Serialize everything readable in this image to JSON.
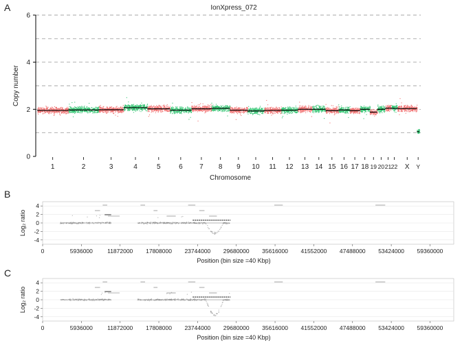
{
  "panels": {
    "a": "A",
    "b": "B",
    "c": "C"
  },
  "colors": {
    "red": "#f07070",
    "green": "#33c472",
    "segment": "#000000",
    "grid": "#888888",
    "dots": "#888888"
  },
  "chart_data": [
    {
      "type": "scatter",
      "panel": "A",
      "title": "IonXpress_072",
      "xlabel": "Chromosome",
      "ylabel": "Copy number",
      "ylim": [
        0,
        6
      ],
      "yticks": [
        0,
        2,
        4,
        6
      ],
      "dashed_grid": [
        1,
        2,
        3,
        4,
        5,
        6
      ],
      "chromosomes": [
        {
          "label": "1",
          "size": 249,
          "value": 1.95
        },
        {
          "label": "2",
          "size": 243,
          "value": 1.97
        },
        {
          "label": "3",
          "size": 198,
          "value": 1.98
        },
        {
          "label": "4",
          "size": 190,
          "value": 2.07
        },
        {
          "label": "5",
          "size": 181,
          "value": 2.02
        },
        {
          "label": "6",
          "size": 171,
          "value": 1.96
        },
        {
          "label": "7",
          "size": 159,
          "value": 2.02
        },
        {
          "label": "8",
          "size": 146,
          "value": 2.04
        },
        {
          "label": "9",
          "size": 141,
          "value": 1.96
        },
        {
          "label": "10",
          "size": 135,
          "value": 1.93
        },
        {
          "label": "11",
          "size": 135,
          "value": 1.95
        },
        {
          "label": "12",
          "size": 133,
          "value": 1.96
        },
        {
          "label": "13",
          "size": 115,
          "value": 2.0
        },
        {
          "label": "14",
          "size": 107,
          "value": 2.0
        },
        {
          "label": "15",
          "size": 102,
          "value": 1.94
        },
        {
          "label": "16",
          "size": 90,
          "value": 1.97
        },
        {
          "label": "17",
          "size": 83,
          "value": 1.94
        },
        {
          "label": "18",
          "size": 78,
          "value": 2.0
        },
        {
          "label": "19",
          "size": 59,
          "value": 1.88
        },
        {
          "label": "20",
          "size": 63,
          "value": 2.0
        },
        {
          "label": "21",
          "size": 48,
          "value": 2.05
        },
        {
          "label": "22",
          "size": 51,
          "value": 2.04
        },
        {
          "label": "X",
          "size": 155,
          "value": 2.03
        },
        {
          "label": "Y",
          "size": 20,
          "value": 1.05
        }
      ]
    },
    {
      "type": "scatter",
      "panel": "B",
      "xlabel": "Position (bin size =40 Kbp)",
      "ylabel": "Log₂ ratio",
      "xlim": [
        0,
        63000000
      ],
      "xticks": [
        0,
        5936000,
        11872000,
        17808000,
        23744000,
        29680000,
        35616000,
        41552000,
        47488000,
        53424000,
        59360000
      ],
      "ylim": [
        -5,
        5
      ],
      "yticks": [
        -4,
        -2,
        0,
        2,
        4
      ],
      "profile": [
        {
          "start": 2700000,
          "end": 10500000,
          "mean": 0.0,
          "dip": 0
        },
        {
          "start": 14500000,
          "end": 28700000,
          "mean": 0.0,
          "dip": -2.5
        }
      ]
    },
    {
      "type": "scatter",
      "panel": "C",
      "xlabel": "Position (bin size =40 Kbp)",
      "ylabel": "Log₂ ratio",
      "xlim": [
        0,
        63000000
      ],
      "xticks": [
        0,
        5936000,
        11872000,
        17808000,
        23744000,
        29680000,
        35616000,
        41552000,
        47488000,
        53424000,
        59360000
      ],
      "ylim": [
        -5,
        5
      ],
      "yticks": [
        -4,
        -2,
        0,
        2,
        4
      ],
      "profile": [
        {
          "start": 2700000,
          "end": 10500000,
          "mean": 0.0,
          "dip": 0
        },
        {
          "start": 14500000,
          "end": 28700000,
          "mean": 0.0,
          "dip": -3.6
        }
      ]
    }
  ]
}
